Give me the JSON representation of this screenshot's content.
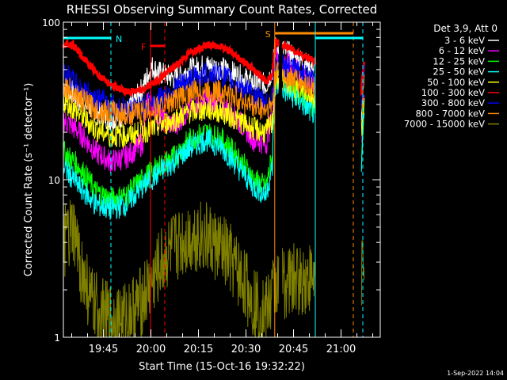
{
  "chart_data": {
    "type": "line",
    "title": "RHESSI Observing Summary Count Rates, Corrected",
    "ylabel": "Corrected Count Rate (s⁻¹ detector⁻¹)",
    "xlabel": "Start Time (15-Oct-16 19:32:22)",
    "y_scale": "log",
    "ylim": [
      1,
      100
    ],
    "y_ticks": [
      {
        "value": 1,
        "label": "1"
      },
      {
        "value": 10,
        "label": "10"
      },
      {
        "value": 100,
        "label": "100"
      }
    ],
    "xlim_minutes": [
      0,
      100
    ],
    "x_ticks": [
      {
        "minute": 12.63,
        "label": "19:45"
      },
      {
        "minute": 27.63,
        "label": "20:00"
      },
      {
        "minute": 42.63,
        "label": "20:15"
      },
      {
        "minute": 57.63,
        "label": "20:30"
      },
      {
        "minute": 72.63,
        "label": "20:45"
      },
      {
        "minute": 87.63,
        "label": "21:00"
      }
    ],
    "legend_title": "Det 3,9, Att 0",
    "legend_position": "top-right",
    "data_gaps_minutes": [
      [
        68,
        69
      ],
      [
        79.5,
        94
      ]
    ],
    "series": [
      {
        "name": "3 - 6 keV",
        "color": "#ffffff",
        "points": [
          [
            0,
            40
          ],
          [
            5,
            32
          ],
          [
            10,
            27
          ],
          [
            15,
            24
          ],
          [
            20,
            26
          ],
          [
            25,
            38
          ],
          [
            28,
            52
          ],
          [
            30,
            48
          ],
          [
            35,
            44
          ],
          [
            40,
            50
          ],
          [
            45,
            53
          ],
          [
            50,
            51
          ],
          [
            55,
            46
          ],
          [
            60,
            41
          ],
          [
            64,
            40
          ],
          [
            66,
            50
          ],
          [
            67,
            70
          ],
          [
            94,
            26
          ],
          [
            95,
            45
          ]
        ]
      },
      {
        "name": "6 - 12 keV",
        "color": "#ff00ff",
        "points": [
          [
            0,
            24
          ],
          [
            5,
            20
          ],
          [
            10,
            15
          ],
          [
            15,
            13
          ],
          [
            20,
            14
          ],
          [
            25,
            17
          ],
          [
            27,
            34
          ],
          [
            30,
            25
          ],
          [
            35,
            22
          ],
          [
            40,
            28
          ],
          [
            45,
            32
          ],
          [
            50,
            30
          ],
          [
            55,
            24
          ],
          [
            60,
            18
          ],
          [
            64,
            17
          ],
          [
            66,
            25
          ],
          [
            67,
            60
          ],
          [
            94,
            15
          ],
          [
            95,
            40
          ]
        ]
      },
      {
        "name": "12 - 25 keV",
        "color": "#00ff00",
        "points": [
          [
            0,
            15
          ],
          [
            5,
            12
          ],
          [
            10,
            8.5
          ],
          [
            15,
            7.5
          ],
          [
            20,
            8
          ],
          [
            25,
            10
          ],
          [
            30,
            12
          ],
          [
            35,
            14
          ],
          [
            40,
            18
          ],
          [
            45,
            20
          ],
          [
            50,
            18
          ],
          [
            55,
            14
          ],
          [
            60,
            10
          ],
          [
            64,
            9
          ],
          [
            66,
            14
          ],
          [
            67,
            45
          ],
          [
            94,
            10
          ],
          [
            95,
            30
          ]
        ]
      },
      {
        "name": "25 - 50 keV",
        "color": "#00ffff",
        "points": [
          [
            0,
            12
          ],
          [
            5,
            9
          ],
          [
            10,
            7
          ],
          [
            15,
            6.5
          ],
          [
            20,
            7
          ],
          [
            25,
            9
          ],
          [
            30,
            11
          ],
          [
            35,
            13
          ],
          [
            40,
            16
          ],
          [
            45,
            18
          ],
          [
            50,
            16
          ],
          [
            55,
            12
          ],
          [
            60,
            9
          ],
          [
            64,
            8
          ],
          [
            66,
            12
          ],
          [
            67,
            40
          ],
          [
            94,
            9
          ],
          [
            95,
            28
          ]
        ]
      },
      {
        "name": "50 - 100 keV",
        "color": "#ffff00",
        "points": [
          [
            0,
            32
          ],
          [
            5,
            26
          ],
          [
            10,
            21
          ],
          [
            15,
            19
          ],
          [
            20,
            19
          ],
          [
            25,
            20
          ],
          [
            30,
            22
          ],
          [
            35,
            24
          ],
          [
            40,
            27
          ],
          [
            45,
            28
          ],
          [
            50,
            27
          ],
          [
            55,
            24
          ],
          [
            60,
            21
          ],
          [
            64,
            20
          ],
          [
            66,
            23
          ],
          [
            67,
            45
          ],
          [
            94,
            20
          ],
          [
            95,
            30
          ]
        ]
      },
      {
        "name": "100 - 300 keV",
        "color": "#ff0000",
        "points": [
          [
            0,
            72
          ],
          [
            3,
            72
          ],
          [
            6,
            60
          ],
          [
            10,
            48
          ],
          [
            15,
            40
          ],
          [
            20,
            36
          ],
          [
            25,
            37
          ],
          [
            30,
            43
          ],
          [
            35,
            52
          ],
          [
            40,
            64
          ],
          [
            45,
            72
          ],
          [
            50,
            70
          ],
          [
            55,
            60
          ],
          [
            60,
            50
          ],
          [
            64,
            42
          ],
          [
            66,
            46
          ],
          [
            67,
            75
          ],
          [
            94,
            34
          ],
          [
            95,
            58
          ]
        ]
      },
      {
        "name": "300 - 800 keV",
        "color": "#0000ff",
        "points": [
          [
            0,
            48
          ],
          [
            5,
            38
          ],
          [
            10,
            33
          ],
          [
            15,
            30
          ],
          [
            20,
            28
          ],
          [
            25,
            29
          ],
          [
            30,
            32
          ],
          [
            35,
            38
          ],
          [
            40,
            43
          ],
          [
            45,
            47
          ],
          [
            50,
            46
          ],
          [
            55,
            40
          ],
          [
            60,
            34
          ],
          [
            64,
            31
          ],
          [
            66,
            33
          ],
          [
            67,
            55
          ],
          [
            94,
            30
          ],
          [
            95,
            50
          ]
        ]
      },
      {
        "name": "800 - 7000 keV",
        "color": "#ff8c00",
        "points": [
          [
            0,
            40
          ],
          [
            5,
            33
          ],
          [
            10,
            28
          ],
          [
            15,
            27
          ],
          [
            20,
            26
          ],
          [
            25,
            27
          ],
          [
            30,
            29
          ],
          [
            35,
            32
          ],
          [
            40,
            36
          ],
          [
            45,
            37
          ],
          [
            50,
            36
          ],
          [
            55,
            33
          ],
          [
            60,
            29
          ],
          [
            64,
            28
          ],
          [
            66,
            30
          ],
          [
            67,
            48
          ],
          [
            94,
            26
          ],
          [
            95,
            40
          ]
        ]
      },
      {
        "name": "7000 - 15000 keV",
        "color": "#808000",
        "points": [
          [
            0,
            4
          ],
          [
            3,
            4.5
          ],
          [
            6,
            2.5
          ],
          [
            9,
            1.6
          ],
          [
            14,
            1.3
          ],
          [
            19,
            1.3
          ],
          [
            24,
            1.6
          ],
          [
            28,
            2.2
          ],
          [
            32,
            3.2
          ],
          [
            37,
            4
          ],
          [
            42,
            4.5
          ],
          [
            47,
            4
          ],
          [
            52,
            3.2
          ],
          [
            56,
            2.4
          ],
          [
            60,
            1.7
          ],
          [
            64,
            1.4
          ],
          [
            67,
            2.2
          ],
          [
            94,
            2.6
          ],
          [
            95,
            4
          ]
        ]
      }
    ],
    "annotations": [
      {
        "label": "N",
        "color": "#00ffff",
        "x_range_minutes": [
          0,
          15
        ]
      },
      {
        "label": "F",
        "color": "#ff0000",
        "x_range_minutes": [
          27.5,
          32
        ]
      },
      {
        "label": "S",
        "color": "#ff8c00",
        "x_range_minutes": [
          66.7,
          91.5
        ]
      },
      {
        "label": "",
        "color": "#00ffff",
        "x_range_minutes": [
          79.5,
          94.5
        ]
      }
    ],
    "footer": "1-Sep-2022 14:04"
  }
}
